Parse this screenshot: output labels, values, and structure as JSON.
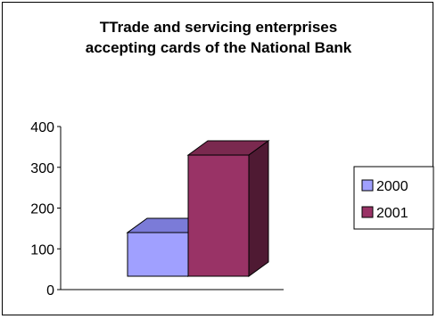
{
  "chart_data": {
    "type": "bar",
    "title_line1": "TTrade and servicing enterprises",
    "title_line2": "accepting cards of the National Bank",
    "xlabel": "",
    "ylabel": "",
    "ylim": [
      0,
      400
    ],
    "yticks": [
      "0",
      "100",
      "200",
      "300",
      "400"
    ],
    "series": [
      {
        "name": "2000",
        "value": 140,
        "front": "#a0a0ff",
        "top": "#7b7bd8",
        "side": "#5a5ab0"
      },
      {
        "name": "2001",
        "value": 330,
        "front": "#993366",
        "top": "#7a294f",
        "side": "#4f1a33"
      }
    ],
    "grid": false,
    "legend": "right",
    "style": "3d-column"
  }
}
